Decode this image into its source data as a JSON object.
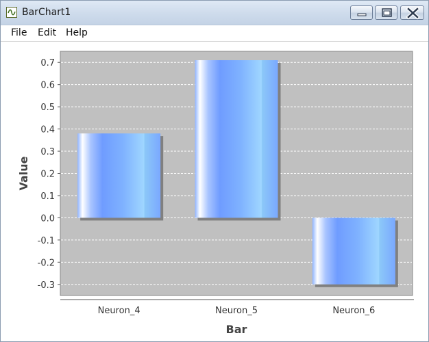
{
  "window": {
    "title": "BarChart1",
    "icon": "chart-app-icon"
  },
  "menu": {
    "file": "File",
    "edit": "Edit",
    "help": "Help"
  },
  "chart_data": {
    "type": "bar",
    "categories": [
      "Neuron_4",
      "Neuron_5",
      "Neuron_6"
    ],
    "values": [
      0.38,
      0.71,
      -0.3
    ],
    "xlabel": "Bar",
    "ylabel": "Value",
    "ylim": [
      -0.35,
      0.75
    ],
    "yticks": [
      -0.3,
      -0.2,
      -0.1,
      0.0,
      0.1,
      0.2,
      0.3,
      0.4,
      0.5,
      0.6,
      0.7
    ],
    "ytick_labels": [
      "-0.3",
      "-0.2",
      "-0.1",
      "0.0",
      "0.1",
      "0.2",
      "0.3",
      "0.4",
      "0.5",
      "0.6",
      "0.7"
    ],
    "grid": true,
    "legend": "none",
    "colors": {
      "plot_background": "#c0c0c0",
      "bar_light": "#9fd4ff",
      "bar_mid": "#6f9cff",
      "bar_highlight": "#ffffff",
      "shadow": "#808080",
      "gridline": "#ffffff"
    }
  }
}
